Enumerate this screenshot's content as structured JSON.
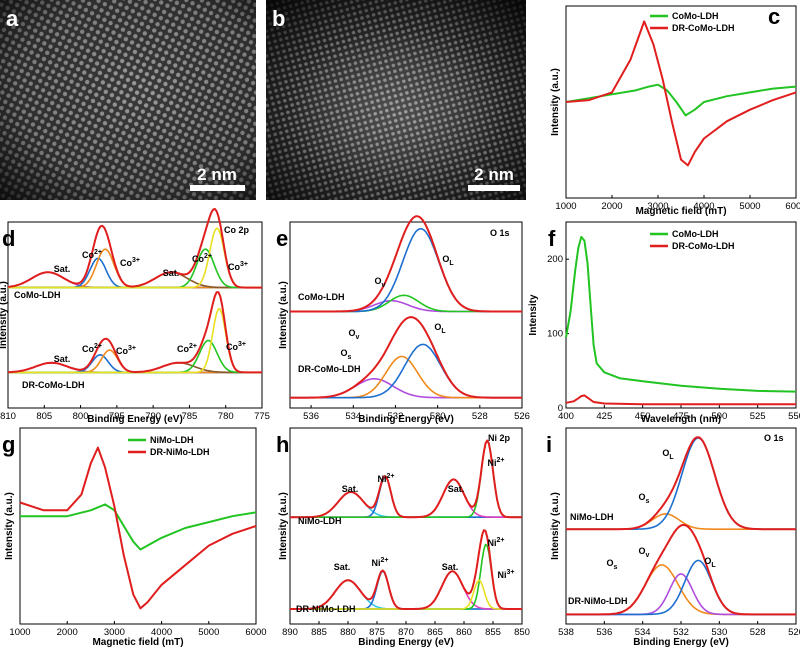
{
  "colors": {
    "green": "#22c422",
    "red": "#e01e1e",
    "blue": "#1e6fd0",
    "orange": "#f08a1c",
    "purple": "#b04de0",
    "yellow": "#e8e020",
    "cyan": "#32c8e8",
    "brown": "#8a5a2a",
    "magenta": "#e040c0"
  },
  "chart_data": [
    {
      "id": "a",
      "type": "image",
      "panel_label": "a",
      "scale_bar": "2 nm",
      "content": "HAADF-STEM lattice image"
    },
    {
      "id": "b",
      "type": "image",
      "panel_label": "b",
      "scale_bar": "2 nm",
      "content": "HAADF-STEM image"
    },
    {
      "id": "c",
      "type": "line",
      "panel_label": "c",
      "xlabel": "Magnetic field (mT)",
      "ylabel": "Intensity (a.u.)",
      "xlim": [
        1000,
        6000
      ],
      "xticks": [
        "1000",
        "2000",
        "3000",
        "4000",
        "5000",
        "6000"
      ],
      "legend": [
        "CoMo-LDH",
        "DR-CoMo-LDH"
      ],
      "legend_position": "top-right",
      "series": [
        {
          "name": "CoMo-LDH",
          "color": "green",
          "x": [
            1000,
            1500,
            2000,
            2500,
            2800,
            3000,
            3200,
            3400,
            3600,
            3800,
            4000,
            4500,
            5000,
            5500,
            6000
          ],
          "y": [
            0.5,
            0.52,
            0.54,
            0.56,
            0.58,
            0.59,
            0.56,
            0.5,
            0.43,
            0.46,
            0.5,
            0.53,
            0.55,
            0.57,
            0.58
          ]
        },
        {
          "name": "DR-CoMo-LDH",
          "color": "red",
          "x": [
            1000,
            1500,
            2000,
            2400,
            2700,
            2900,
            3100,
            3300,
            3500,
            3650,
            3800,
            4000,
            4500,
            5000,
            5500,
            6000
          ],
          "y": [
            0.5,
            0.51,
            0.55,
            0.72,
            0.92,
            0.8,
            0.62,
            0.4,
            0.2,
            0.17,
            0.24,
            0.31,
            0.4,
            0.46,
            0.51,
            0.55
          ]
        }
      ]
    },
    {
      "id": "d",
      "type": "line",
      "panel_label": "d",
      "corner_title": "Co 2p",
      "xlabel": "Binding Energy (eV)",
      "ylabel": "Intensity (a.u.)",
      "xlim": [
        810,
        775
      ],
      "xticks": [
        "810",
        "805",
        "800",
        "795",
        "790",
        "785",
        "780",
        "775"
      ],
      "sample_labels": [
        "CoMo-LDH",
        "DR-CoMo-LDH"
      ],
      "peak_labels": [
        "Sat.",
        "Co2+",
        "Co3+",
        "Sat.",
        "Co2+",
        "Co3+",
        "Sat.",
        "Co2+",
        "Co3+",
        "Co2+",
        "Co3+"
      ]
    },
    {
      "id": "e",
      "type": "line",
      "panel_label": "e",
      "corner_title": "O 1s",
      "xlabel": "Binding Energy (eV)",
      "ylabel": "Intensity (a.u.)",
      "xlim": [
        537,
        526
      ],
      "xticks": [
        "536",
        "534",
        "532",
        "530",
        "528",
        "526"
      ],
      "sample_labels": [
        "CoMo-LDH",
        "DR-CoMo-LDH"
      ],
      "peak_labels": [
        "Ov",
        "OL",
        "Os",
        "Ov",
        "OL"
      ]
    },
    {
      "id": "f",
      "type": "line",
      "panel_label": "f",
      "xlabel": "Wavelength (nm)",
      "ylabel": "Intensity",
      "xlim": [
        400,
        550
      ],
      "ylim": [
        0,
        250
      ],
      "xticks": [
        "400",
        "425",
        "450",
        "475",
        "500",
        "525",
        "550"
      ],
      "yticks": [
        "0",
        "100",
        "200"
      ],
      "legend": [
        "CoMo-LDH",
        "DR-CoMo-LDH"
      ],
      "legend_position": "top-right",
      "series": [
        {
          "name": "CoMo-LDH",
          "color": "green",
          "x": [
            400,
            403,
            406,
            408,
            410,
            412,
            414,
            416,
            418,
            420,
            425,
            435,
            450,
            475,
            500,
            525,
            550
          ],
          "y": [
            95,
            130,
            185,
            215,
            230,
            225,
            195,
            140,
            85,
            60,
            48,
            40,
            36,
            30,
            26,
            23,
            22
          ]
        },
        {
          "name": "DR-CoMo-LDH",
          "color": "red",
          "x": [
            400,
            405,
            408,
            410,
            412,
            414,
            418,
            425,
            450,
            500,
            550
          ],
          "y": [
            7,
            9,
            13,
            16,
            17,
            14,
            8,
            6,
            5,
            5,
            5
          ]
        }
      ]
    },
    {
      "id": "g",
      "type": "line",
      "panel_label": "g",
      "xlabel": "Magnetic field (mT)",
      "ylabel": "Intensity (a.u.)",
      "xlim": [
        1000,
        6000
      ],
      "xticks": [
        "1000",
        "2000",
        "3000",
        "4000",
        "5000",
        "6000"
      ],
      "legend": [
        "NiMo-LDH",
        "DR-NiMo-LDH"
      ],
      "legend_position": "top-right",
      "series": [
        {
          "name": "NiMo-LDH",
          "color": "green",
          "x": [
            1000,
            1500,
            2000,
            2500,
            2800,
            3000,
            3200,
            3400,
            3550,
            3700,
            4000,
            4500,
            5000,
            5500,
            6000
          ],
          "y": [
            0.55,
            0.55,
            0.55,
            0.58,
            0.61,
            0.58,
            0.5,
            0.42,
            0.38,
            0.4,
            0.44,
            0.49,
            0.52,
            0.55,
            0.57
          ]
        },
        {
          "name": "DR-NiMo-LDH",
          "color": "red",
          "x": [
            1000,
            1500,
            2000,
            2300,
            2500,
            2650,
            2800,
            3000,
            3200,
            3400,
            3550,
            3700,
            4000,
            4500,
            5000,
            5500,
            6000
          ],
          "y": [
            0.62,
            0.58,
            0.58,
            0.66,
            0.82,
            0.9,
            0.8,
            0.6,
            0.35,
            0.15,
            0.08,
            0.11,
            0.2,
            0.3,
            0.4,
            0.46,
            0.5
          ]
        }
      ]
    },
    {
      "id": "h",
      "type": "line",
      "panel_label": "h",
      "corner_title": "Ni 2p",
      "xlabel": "Binding Energy (eV)",
      "ylabel": "Intensity (a.u.)",
      "xlim": [
        890,
        850
      ],
      "xticks": [
        "890",
        "885",
        "880",
        "875",
        "870",
        "865",
        "860",
        "855",
        "850"
      ],
      "sample_labels": [
        "NiMo-LDH",
        "DR-NiMo-LDH"
      ],
      "peak_labels": [
        "Sat.",
        "Ni2+",
        "Sat.",
        "Ni2+",
        "Sat.",
        "Ni2+",
        "Sat.",
        "Ni2+",
        "Ni3+"
      ]
    },
    {
      "id": "i",
      "type": "line",
      "panel_label": "i",
      "corner_title": "O 1s",
      "xlabel": "Binding Energy (eV)",
      "ylabel": "Intensity (a.u.)",
      "xlim": [
        538,
        526
      ],
      "xticks": [
        "538",
        "536",
        "534",
        "532",
        "530",
        "528",
        "526"
      ],
      "sample_labels": [
        "NiMo-LDH",
        "DR-NiMo-LDH"
      ],
      "peak_labels": [
        "OL",
        "Os",
        "Os",
        "Ov",
        "OL"
      ]
    }
  ]
}
